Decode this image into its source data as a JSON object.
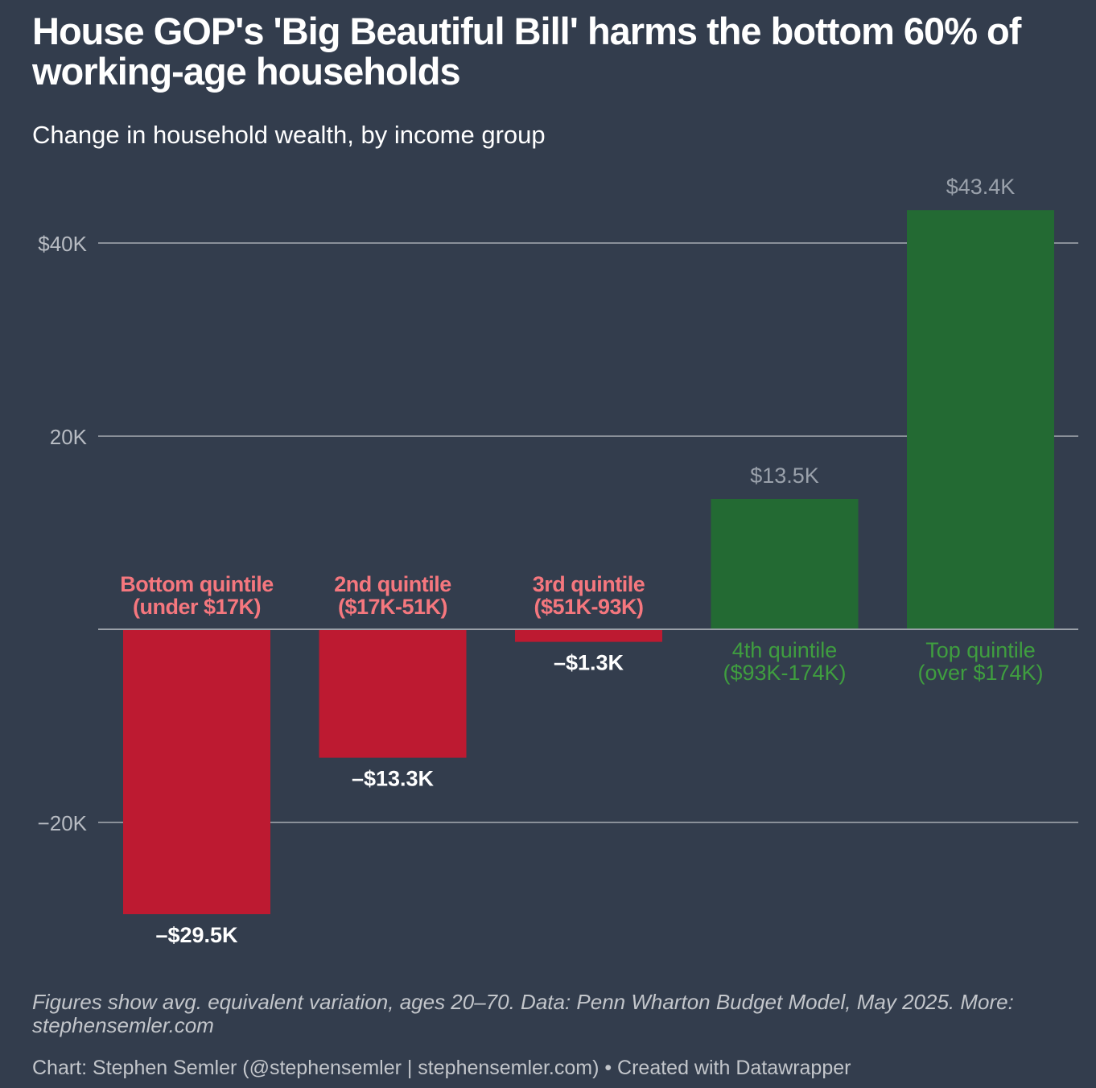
{
  "title": "House GOP's 'Big Beautiful Bill' harms the bottom 60% of working-age households",
  "subtitle": "Change in household wealth, by income group",
  "colors": {
    "background": "#333d4d",
    "negative": "#bd1a31",
    "positive": "#236a33",
    "negative_label": "#f5777e",
    "positive_label": "#3f9e3f",
    "negative_value": "#ffffff",
    "positive_value": "#9aa1ab",
    "grid": "#8a9099",
    "axis_label": "#b8bcc3"
  },
  "chart_data": {
    "type": "bar",
    "ylim": [
      -31000,
      45500
    ],
    "yticks": [
      {
        "value": 40000,
        "label": "$40K"
      },
      {
        "value": 20000,
        "label": "20K"
      },
      {
        "value": -20000,
        "label": "−20K"
      }
    ],
    "categories": [
      [
        "Bottom quintile",
        "(under $17K)"
      ],
      [
        "2nd quintile",
        "($17K-51K)"
      ],
      [
        "3rd quintile",
        "($51K-93K)"
      ],
      [
        "4th quintile",
        "($93K-174K)"
      ],
      [
        "Top quintile",
        "(over $174K)"
      ]
    ],
    "values": [
      -29500,
      -13300,
      -1300,
      13500,
      43400
    ],
    "value_labels": [
      "–$29.5K",
      "–$13.3K",
      "–$1.3K",
      "$13.5K",
      "$43.4K"
    ]
  },
  "note": "Figures show avg. equivalent variation, ages 20–70. Data: Penn Wharton Budget Model, May 2025. More: stephensemler.com",
  "credit": "Chart: Stephen Semler (@stephensemler | stephensemler.com) • Created with Datawrapper"
}
